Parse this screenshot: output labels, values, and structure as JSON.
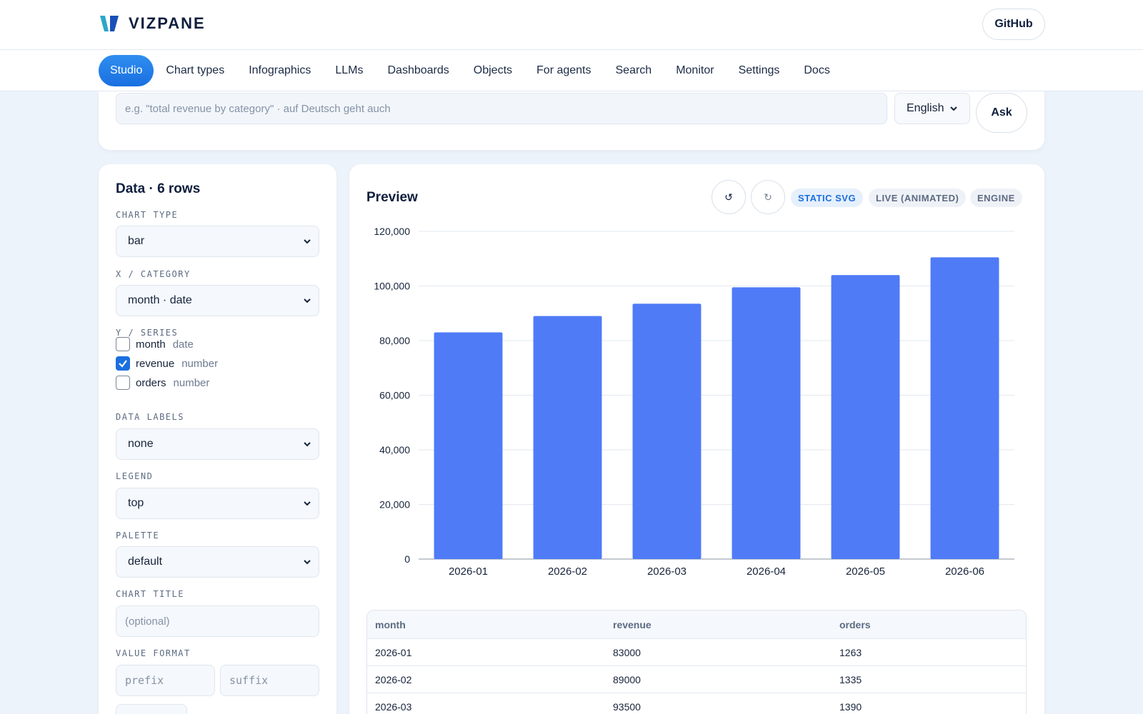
{
  "header": {
    "brand": "VIZPANE",
    "github_label": "GitHub"
  },
  "nav": {
    "items": [
      {
        "label": "Studio",
        "active": true
      },
      {
        "label": "Chart types"
      },
      {
        "label": "Infographics"
      },
      {
        "label": "LLMs"
      },
      {
        "label": "Dashboards"
      },
      {
        "label": "Objects"
      },
      {
        "label": "For agents"
      },
      {
        "label": "Search"
      },
      {
        "label": "Monitor"
      },
      {
        "label": "Settings"
      },
      {
        "label": "Docs"
      }
    ]
  },
  "ask": {
    "placeholder": "e.g. \"total revenue by category\" · auf Deutsch geht auch",
    "language": "English",
    "button_label": "Ask"
  },
  "left": {
    "title": "Data · 6 rows",
    "chart_type_label": "CHART TYPE",
    "chart_type_value": "bar",
    "x_label": "X / CATEGORY",
    "x_value": "month · date",
    "y_label": "Y / SERIES",
    "series": [
      {
        "name": "month",
        "type": "date",
        "checked": false
      },
      {
        "name": "revenue",
        "type": "number",
        "checked": true
      },
      {
        "name": "orders",
        "type": "number",
        "checked": false
      }
    ],
    "data_labels_label": "DATA LABELS",
    "data_labels_value": "none",
    "legend_label": "LEGEND",
    "legend_value": "top",
    "palette_label": "PALETTE",
    "palette_value": "default",
    "chart_title_label": "CHART TITLE",
    "chart_title_placeholder": "(optional)",
    "value_format_label": "VALUE FORMAT",
    "prefix_placeholder": "prefix",
    "suffix_placeholder": "suffix"
  },
  "preview": {
    "title": "Preview",
    "undo_icon": "undo-icon",
    "redo_icon": "redo-icon",
    "modes": [
      "STATIC SVG",
      "LIVE (ANIMATED)",
      "ENGINE"
    ],
    "active_mode": "STATIC SVG"
  },
  "chart_data": {
    "type": "bar",
    "categories": [
      "2026-01",
      "2026-02",
      "2026-03",
      "2026-04",
      "2026-05",
      "2026-06"
    ],
    "series": [
      {
        "values": [
          83000,
          89000,
          93500,
          99500,
          104000,
          110500
        ]
      }
    ],
    "yticks": [
      "0",
      "20,000",
      "40,000",
      "60,000",
      "80,000",
      "100,000",
      "120,000"
    ],
    "ylim": [
      0,
      120000
    ],
    "grid": true,
    "bar_color": "#4f7bf7"
  },
  "table": {
    "headers": [
      "month",
      "revenue",
      "orders"
    ],
    "rows": [
      [
        "2026-01",
        "83000",
        "1263"
      ],
      [
        "2026-02",
        "89000",
        "1335"
      ],
      [
        "2026-03",
        "93500",
        "1390"
      ]
    ]
  },
  "colors": {
    "accent": "#1a6fe0",
    "bar": "#4f7bf7",
    "background": "#edf3fb"
  }
}
